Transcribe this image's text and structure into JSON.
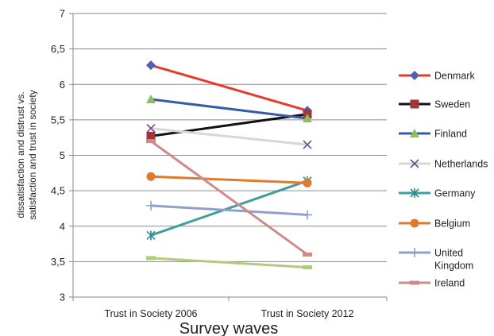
{
  "chart_data": {
    "type": "line",
    "categories": [
      "Trust in Society 2006",
      "Trust in Society 2012"
    ],
    "xlabel": "Survey waves",
    "ylabel": "dissatisfaction and distrust vs. satisfaction and trust in society",
    "ylim": [
      3,
      7
    ],
    "y_ticks": [
      "3",
      "3,5",
      "4",
      "4,5",
      "5",
      "5,5",
      "6",
      "6,5",
      "7"
    ],
    "grid": true,
    "legend_position": "right",
    "series": [
      {
        "name": "Denmark",
        "values": [
          6.27,
          5.63
        ],
        "color": "#e63a2e",
        "marker": "diamond",
        "marker_color": "#4a63b0"
      },
      {
        "name": "Sweden",
        "values": [
          5.27,
          5.58
        ],
        "color": "#111111",
        "marker": "square",
        "marker_color": "#a0353a"
      },
      {
        "name": "Finland",
        "values": [
          5.79,
          5.52
        ],
        "color": "#3a5aa8",
        "marker": "triangle",
        "marker_color": "#8fbf5a"
      },
      {
        "name": "Netherlands",
        "values": [
          5.38,
          5.15
        ],
        "color": "#d8d8d0",
        "marker": "x",
        "marker_color": "#6e4a8e"
      },
      {
        "name": "Germany",
        "values": [
          3.87,
          4.64
        ],
        "color": "#3e9e9e",
        "marker": "asterisk",
        "marker_color": "#2e8a8e"
      },
      {
        "name": "Belgium",
        "values": [
          4.7,
          4.61
        ],
        "color": "#e07a2e",
        "marker": "circle",
        "marker_color": "#e07a2e"
      },
      {
        "name": "United Kingdom",
        "values": [
          4.29,
          4.16
        ],
        "color": "#8fa0cc",
        "marker": "plus",
        "marker_color": "#8fa0cc"
      },
      {
        "name": "Ireland",
        "values": [
          5.2,
          3.6
        ],
        "color": "#d08a8a",
        "marker": "dash",
        "marker_color": "#d08a8a"
      },
      {
        "name": "",
        "values": [
          3.55,
          3.42
        ],
        "color": "#b0cc7a",
        "marker": "dash",
        "marker_color": "#b0cc7a"
      }
    ]
  }
}
